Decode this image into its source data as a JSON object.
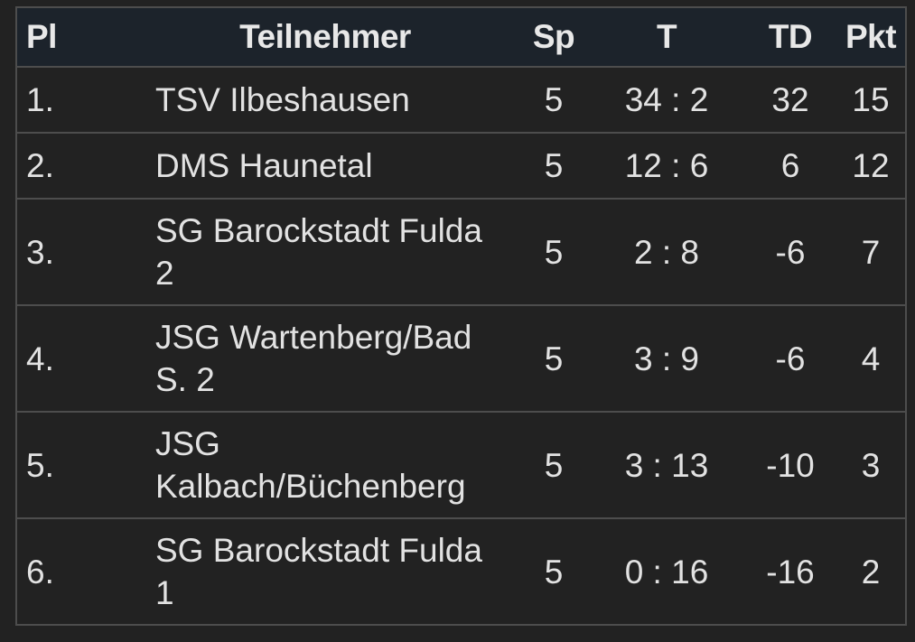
{
  "table": {
    "headers": {
      "place": "Pl",
      "team": "Teilnehmer",
      "games": "Sp",
      "goals": "T",
      "goal_diff": "TD",
      "points": "Pkt"
    },
    "rows": [
      {
        "place": "1.",
        "team": "TSV Ilbeshausen",
        "games": "5",
        "goals": "34 : 2",
        "goal_diff": "32",
        "points": "15"
      },
      {
        "place": "2.",
        "team": "DMS Haunetal",
        "games": "5",
        "goals": "12 : 6",
        "goal_diff": "6",
        "points": "12"
      },
      {
        "place": "3.",
        "team": "SG Barockstadt Fulda 2",
        "games": "5",
        "goals": "2 : 8",
        "goal_diff": "-6",
        "points": "7"
      },
      {
        "place": "4.",
        "team": "JSG Wartenberg/Bad S. 2",
        "games": "5",
        "goals": "3 : 9",
        "goal_diff": "-6",
        "points": "4"
      },
      {
        "place": "5.",
        "team": "JSG Kalbach/Büchenberg",
        "games": "5",
        "goals": "3 : 13",
        "goal_diff": "-10",
        "points": "3"
      },
      {
        "place": "6.",
        "team": "SG Barockstadt Fulda 1",
        "games": "5",
        "goals": "0 : 16",
        "goal_diff": "-16",
        "points": "2"
      }
    ]
  }
}
